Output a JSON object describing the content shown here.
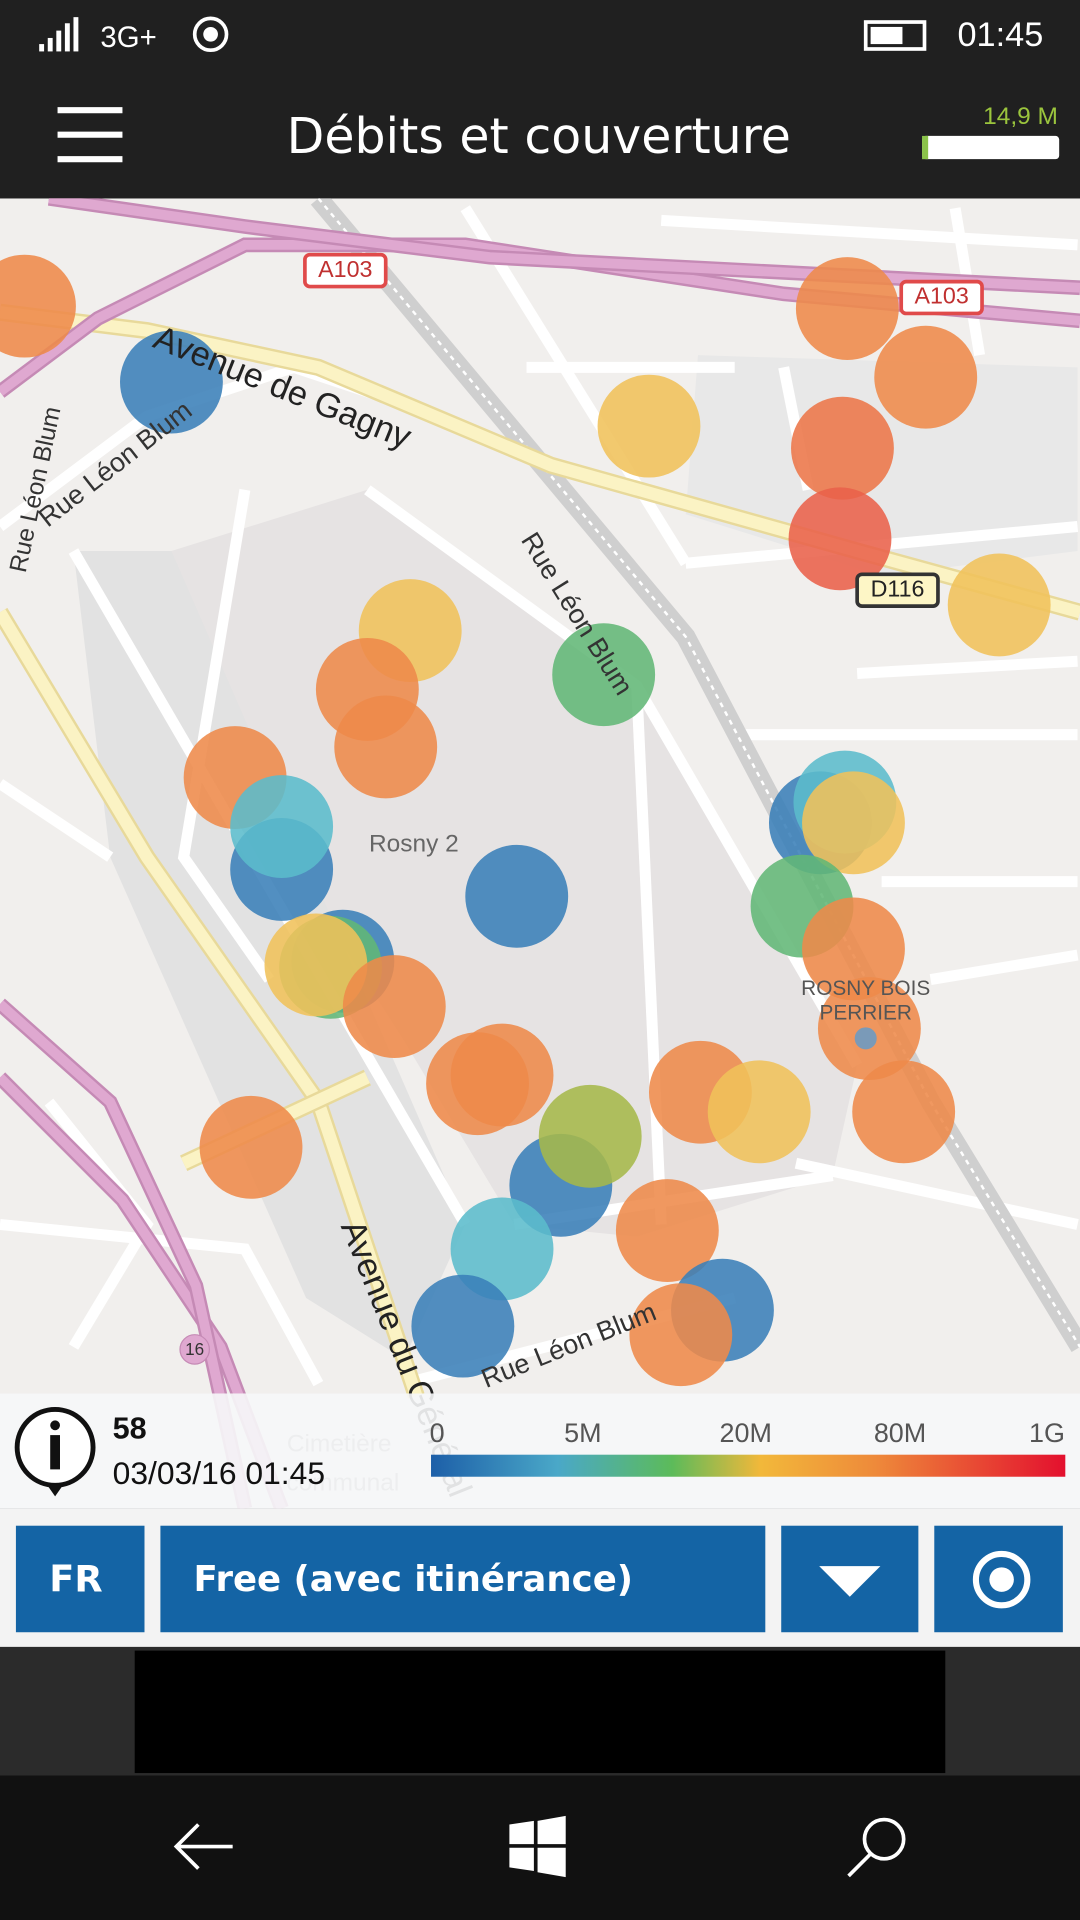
{
  "status_bar": {
    "network": "3G+",
    "time": "01:45"
  },
  "header": {
    "title": "Débits et couverture",
    "data_used": "14,9 M"
  },
  "map": {
    "labels": [
      "A103",
      "A103",
      "D116",
      "Avenue de Gagny",
      "Rue Léon Blum",
      "Rue Léon Blum",
      "Rue Léon Blum",
      "Rue Léon Blum",
      "Rosny 2",
      "ROSNY BOIS",
      "PERRIER",
      "16",
      "Avenue du Général",
      "Cimetière",
      "communal"
    ]
  },
  "info": {
    "count": 58,
    "timestamp": "03/03/16 01:45"
  },
  "scale": {
    "labels": [
      "0",
      "5M",
      "20M",
      "80M",
      "1G"
    ]
  },
  "controls": {
    "country": "FR",
    "operator": "Free (avec itinérance)"
  }
}
